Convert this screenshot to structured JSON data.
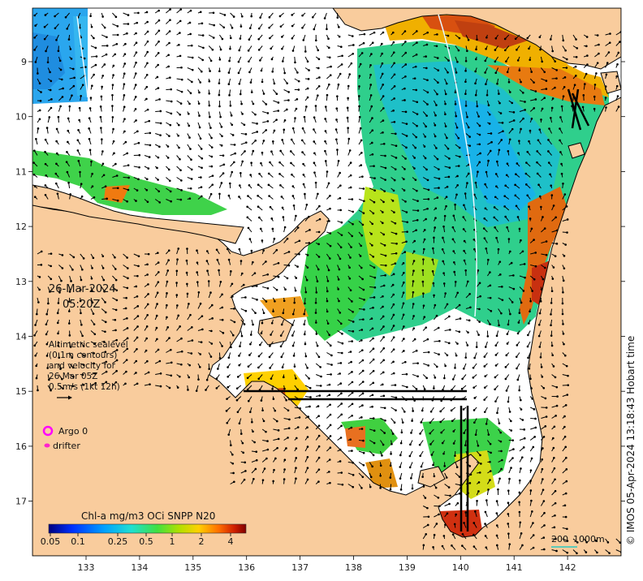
{
  "map": {
    "date": "26-Mar-2024",
    "time": "05:20Z",
    "info_lines": [
      "Altimetric sealevel",
      "(0.1m contours)",
      "and velocity for",
      "26 Mar 05Z",
      "0.5m/s (1kt 12h)"
    ],
    "legend": {
      "argo_label": "Argo 0",
      "drifter_label": "drifter",
      "argo_color": "#ff00ff",
      "drifter_color": "#ff22cc"
    },
    "colorbar": {
      "title": "Chl-a mg/m3 OCi SNPP N20",
      "ticks": [
        "0.05",
        "0.1",
        "0.25",
        "0.5",
        "1",
        "2",
        "4"
      ],
      "colors": [
        "#00007f",
        "#0020ff",
        "#00a0ff",
        "#20e0e0",
        "#40e040",
        "#a0e000",
        "#ffd000",
        "#ff8000",
        "#e03000",
        "#900000"
      ]
    },
    "x_axis_ticks": [
      "133",
      "134",
      "135",
      "136",
      "137",
      "138",
      "139",
      "140",
      "141",
      "142"
    ],
    "y_axis_ticks": [
      "9",
      "10",
      "11",
      "12",
      "13",
      "14",
      "15",
      "16",
      "17"
    ],
    "copyright": "© IMOS 05-Apr-2024 13:18:43 Hobart time",
    "scale_bar": {
      "label_left": "200",
      "label_right": "1000m",
      "color": "#00c8c8"
    },
    "colors": {
      "land": "#f9cc9d",
      "sea": "#ffffff",
      "coast": "#000000"
    }
  }
}
